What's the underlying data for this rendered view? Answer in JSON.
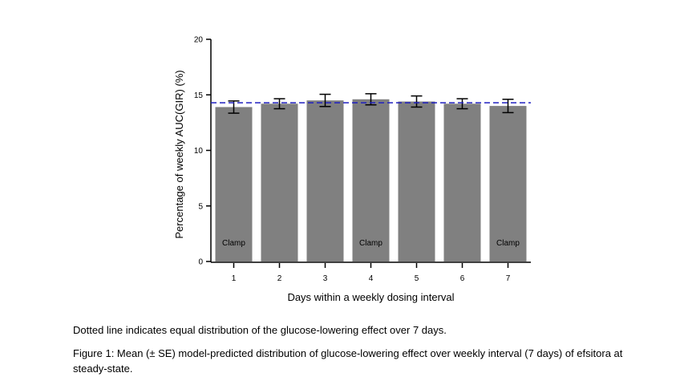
{
  "chart_data": {
    "type": "bar",
    "categories": [
      "1",
      "2",
      "3",
      "4",
      "5",
      "6",
      "7"
    ],
    "values": [
      13.9,
      14.2,
      14.5,
      14.6,
      14.4,
      14.2,
      14.0
    ],
    "errors": [
      0.55,
      0.45,
      0.55,
      0.5,
      0.5,
      0.45,
      0.6
    ],
    "bar_labels": [
      "Clamp",
      "",
      "",
      "Clamp",
      "",
      "",
      "Clamp"
    ],
    "reference_line": 14.29,
    "ylim": [
      0,
      20
    ],
    "yticks": [
      0,
      5,
      10,
      15,
      20
    ],
    "xlabel": "Days within a weekly dosing interval",
    "ylabel": "Percentage of weekly AUC(GIR) (%)",
    "grid": false,
    "colors": {
      "bar": "#808080",
      "reference": "#2020c0",
      "error": "#000000"
    }
  },
  "captions": {
    "note": "Dotted line indicates equal distribution of the glucose-lowering effect over 7 days.",
    "figure": "Figure 1: Mean (± SE) model-predicted distribution of glucose-lowering effect over weekly interval (7 days) of efsitora at steady-state."
  }
}
